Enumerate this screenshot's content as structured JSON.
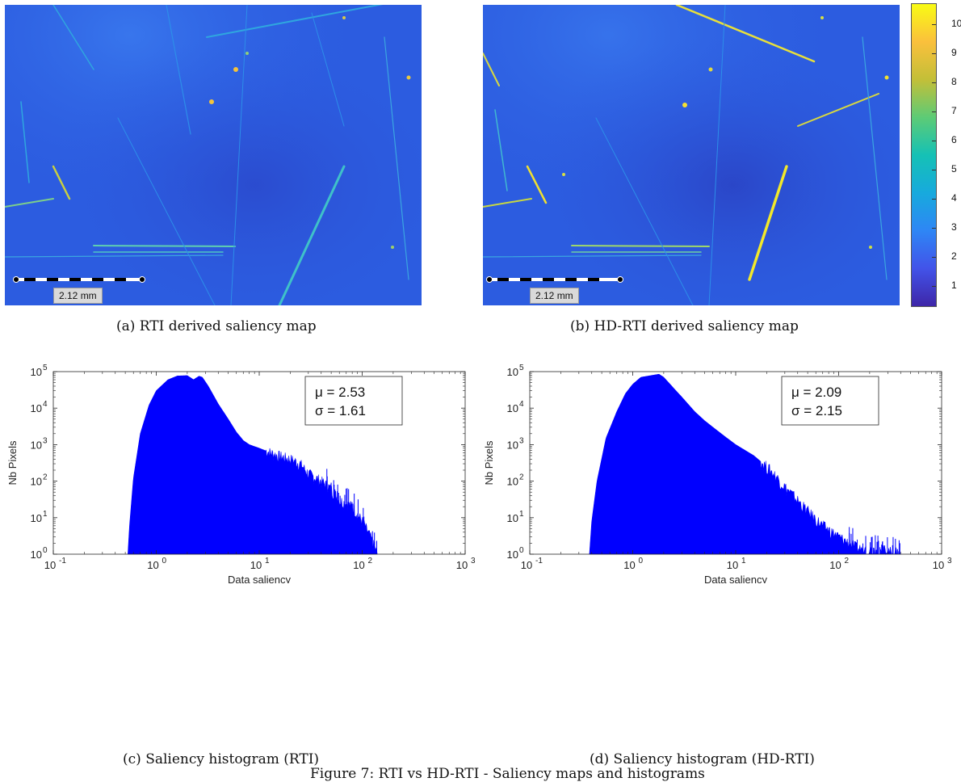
{
  "panels": {
    "a": {
      "caption": "(a) RTI derived saliency map",
      "scalebar_label": "2.12 mm"
    },
    "b": {
      "caption": "(b) HD-RTI derived saliency map",
      "scalebar_label": "2.12 mm"
    },
    "c": {
      "caption": "(c) Saliency histogram (RTI)"
    },
    "d": {
      "caption": "(d) Saliency histogram (HD-RTI)"
    }
  },
  "colorbar": {
    "ticks": [
      "10",
      "9",
      "8",
      "7",
      "6",
      "5",
      "4",
      "3",
      "2",
      "1"
    ],
    "range": [
      0.3,
      10.7
    ],
    "colormap": [
      "#3e26a8",
      "#4253e9",
      "#2e86f5",
      "#17aadd",
      "#15c1b5",
      "#5dcb76",
      "#c3bf38",
      "#fac03c",
      "#f9fb14"
    ]
  },
  "figure_caption": "Figure 7: RTI vs HD-RTI - Saliency maps and histograms",
  "colors": {
    "histogram_fill": "#0000ff",
    "map_base": "#2c5ce0"
  },
  "chart_data": [
    {
      "type": "area",
      "title": "",
      "xlabel": "Data saliency",
      "ylabel": "Nb Pixels",
      "xscale": "log",
      "yscale": "log",
      "xlim": [
        0.1,
        1000
      ],
      "ylim": [
        1,
        100000
      ],
      "xticks": [
        "10",
        "10",
        "10",
        "10",
        "10"
      ],
      "xtick_exponents": [
        "-1",
        "0",
        "1",
        "2",
        "3"
      ],
      "yticks": [
        "10",
        "10",
        "10",
        "10",
        "10",
        "10"
      ],
      "ytick_exponents": [
        "0",
        "1",
        "2",
        "3",
        "4",
        "5"
      ],
      "stats_mu": "μ = 2.53",
      "stats_sigma": "σ = 1.61",
      "x": [
        0.53,
        0.55,
        0.6,
        0.7,
        0.85,
        1.0,
        1.3,
        1.6,
        2.0,
        2.3,
        2.6,
        2.8,
        3.2,
        4.0,
        5.0,
        6.0,
        7.0,
        8.0,
        10.0,
        12.0,
        15.0,
        20.0,
        25.0,
        30.0,
        40.0,
        50.0,
        60.0,
        80.0,
        100.0,
        120.0,
        140.0
      ],
      "y": [
        1,
        6,
        120,
        2000,
        12000,
        30000,
        60000,
        76000,
        78000,
        60000,
        75000,
        70000,
        40000,
        13000,
        5000,
        2200,
        1300,
        1000,
        800,
        650,
        500,
        400,
        300,
        160,
        100,
        60,
        30,
        20,
        8,
        3,
        1
      ]
    },
    {
      "type": "area",
      "title": "",
      "xlabel": "Data saliency",
      "ylabel": "Nb Pixels",
      "xscale": "log",
      "yscale": "log",
      "xlim": [
        0.1,
        1000
      ],
      "ylim": [
        1,
        100000
      ],
      "xticks": [
        "10",
        "10",
        "10",
        "10",
        "10"
      ],
      "xtick_exponents": [
        "-1",
        "0",
        "1",
        "2",
        "3"
      ],
      "yticks": [
        "10",
        "10",
        "10",
        "10",
        "10",
        "10"
      ],
      "ytick_exponents": [
        "0",
        "1",
        "2",
        "3",
        "4",
        "5"
      ],
      "stats_mu": "μ = 2.09",
      "stats_sigma": "σ = 2.15",
      "x": [
        0.38,
        0.4,
        0.45,
        0.55,
        0.7,
        0.85,
        1.0,
        1.2,
        1.5,
        1.8,
        2.0,
        2.5,
        3.0,
        4.0,
        5.0,
        6.0,
        8.0,
        10.0,
        15.0,
        20.0,
        25.0,
        30.0,
        40.0,
        50.0,
        70.0,
        100.0,
        150.0,
        200.0,
        300.0,
        400.0
      ],
      "y": [
        1,
        8,
        100,
        1500,
        8000,
        25000,
        45000,
        70000,
        78000,
        85000,
        70000,
        35000,
        20000,
        8000,
        4500,
        3000,
        1600,
        1000,
        500,
        250,
        130,
        70,
        30,
        15,
        6,
        3,
        1.5,
        1.3,
        1.2,
        1
      ]
    }
  ]
}
